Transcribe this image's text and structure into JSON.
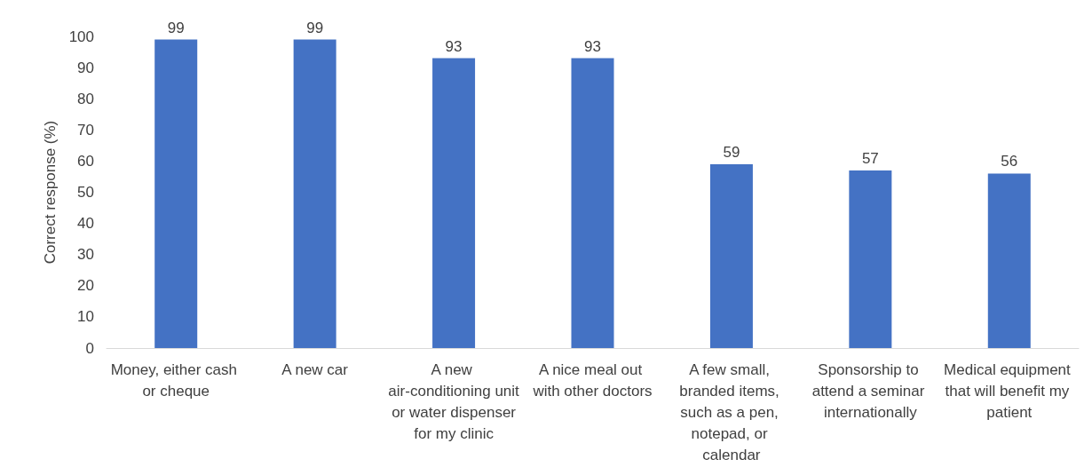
{
  "chart_data": {
    "type": "bar",
    "ylabel": "Correct response (%)",
    "categories": [
      "Money, either cash or cheque",
      "A new car",
      "A new air-conditioning unit or water dispenser for my clinic",
      "A nice meal out with other doctors",
      "A few small, branded items, such as a pen, notepad, or calendar",
      "Sponsorship to attend a seminar internationally",
      "Medical equipment that will benefit my patient"
    ],
    "values": [
      99,
      99,
      93,
      93,
      59,
      57,
      56
    ],
    "color": "#4472c4",
    "ylim": [
      0,
      100
    ],
    "yticks": [
      0,
      10,
      20,
      30,
      40,
      50,
      60,
      70,
      80,
      90,
      100
    ],
    "grid": false,
    "data_labels": true
  }
}
